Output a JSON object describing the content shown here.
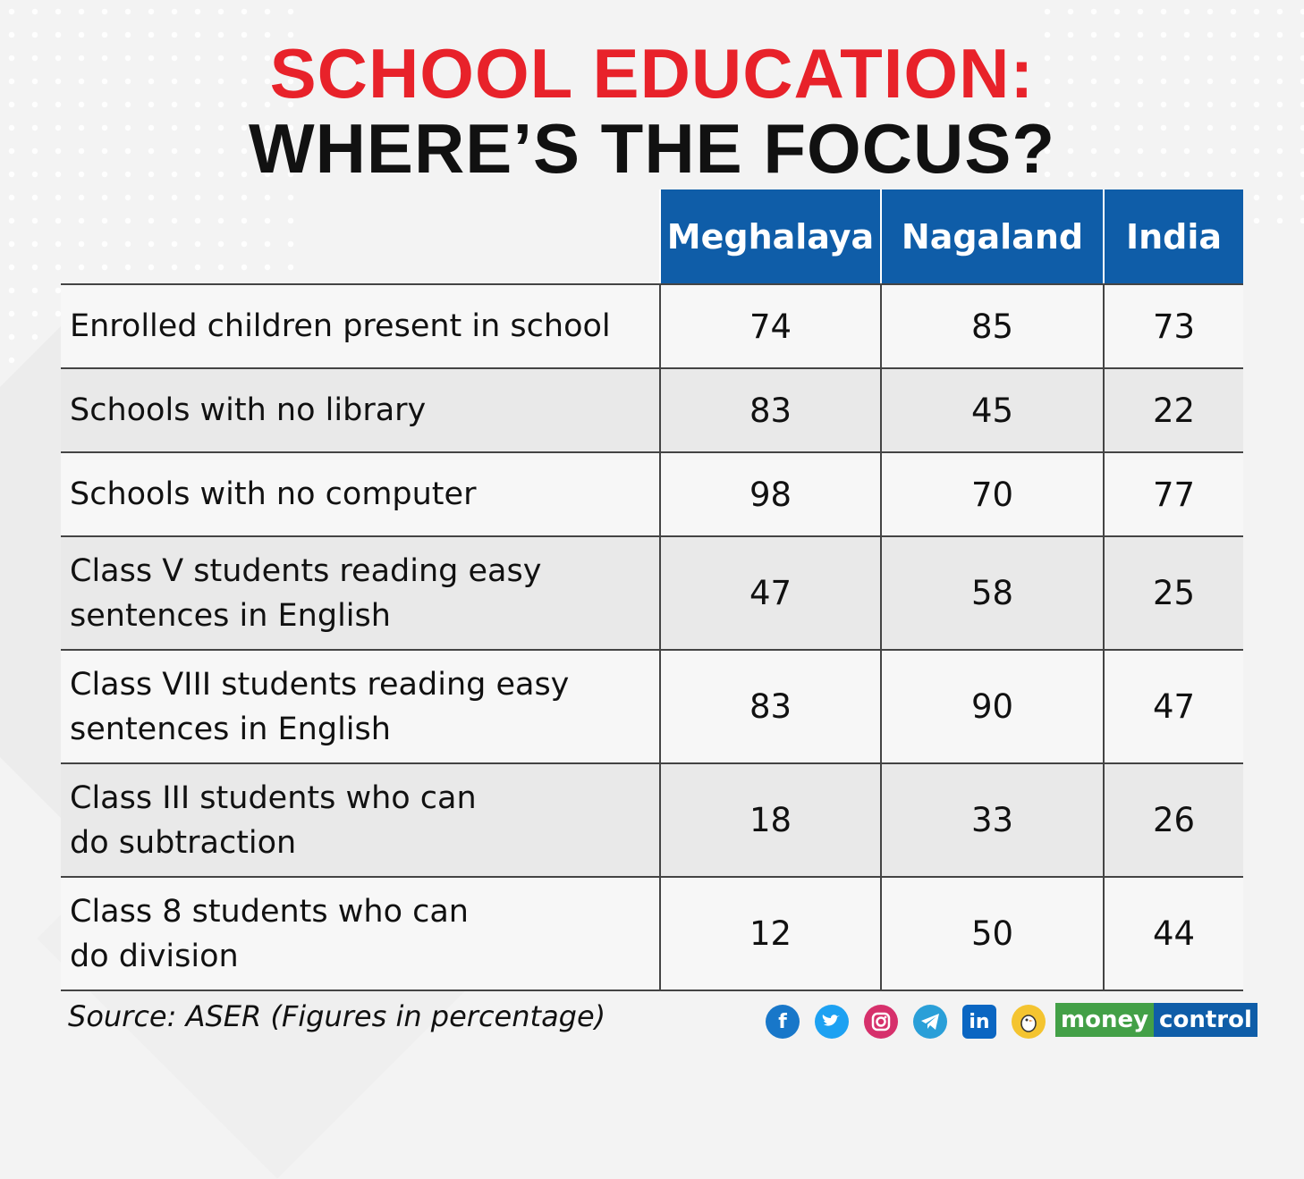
{
  "title": {
    "line1": "SCHOOL EDUCATION:",
    "line2": "WHERE’S THE FOCUS?"
  },
  "chart_data": {
    "type": "table",
    "columns": [
      "Meghalaya",
      "Nagaland",
      "India"
    ],
    "rows": [
      {
        "label": "Enrolled children present in school",
        "values": [
          "74",
          "85",
          "73"
        ]
      },
      {
        "label": "Schools with no library",
        "values": [
          "83",
          "45",
          "22"
        ]
      },
      {
        "label": "Schools with no computer",
        "values": [
          "98",
          "70",
          "77"
        ]
      },
      {
        "label": "Class V students reading easy\nsentences in English",
        "values": [
          "47",
          "58",
          "25"
        ]
      },
      {
        "label": "Class VIII students reading easy\nsentences in English",
        "values": [
          "83",
          "90",
          "47"
        ]
      },
      {
        "label": "Class III students who can\ndo subtraction",
        "values": [
          "18",
          "33",
          "26"
        ]
      },
      {
        "label": "Class 8 students who can\ndo division",
        "values": [
          "12",
          "50",
          "44"
        ]
      }
    ]
  },
  "footer": {
    "source": "Source: ASER (Figures in percentage)",
    "social_icons": [
      "facebook-icon",
      "twitter-icon",
      "instagram-icon",
      "telegram-icon",
      "linkedin-icon",
      "koo-icon"
    ],
    "brand_part1": "money",
    "brand_part2": "control"
  },
  "colors": {
    "title_accent": "#e8222a",
    "header_bg": "#0f5da8",
    "brand_green": "#43a047"
  }
}
